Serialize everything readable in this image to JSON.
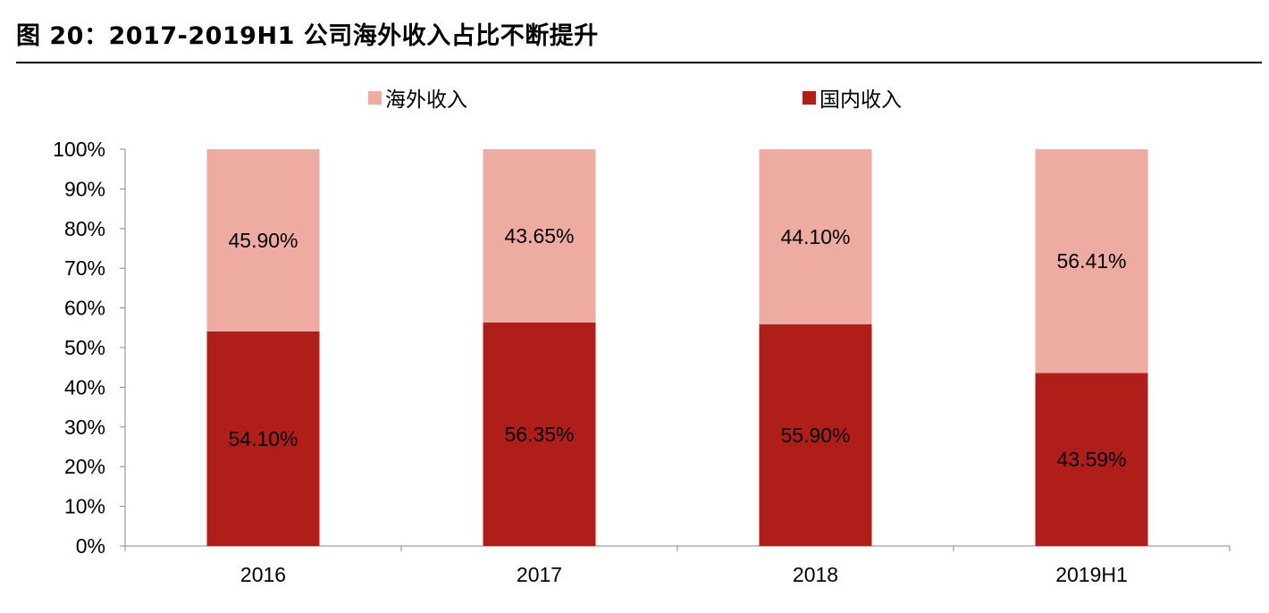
{
  "figure": {
    "title": "图 20：2017-2019H1 公司海外收入占比不断提升"
  },
  "chart_data": {
    "type": "bar",
    "stacked": true,
    "categories": [
      "2016",
      "2017",
      "2018",
      "2019H1"
    ],
    "series": [
      {
        "name": "国内收入",
        "values": [
          54.1,
          56.35,
          55.9,
          43.59
        ],
        "labels": [
          "54.10%",
          "56.35%",
          "55.90%",
          "43.59%"
        ],
        "color": "#B01E1A"
      },
      {
        "name": "海外收入",
        "values": [
          45.9,
          43.65,
          44.1,
          56.41
        ],
        "labels": [
          "45.90%",
          "43.65%",
          "44.10%",
          "56.41%"
        ],
        "color": "#EDABA2"
      }
    ],
    "ylim": [
      0,
      100
    ],
    "yticks": [
      "0%",
      "10%",
      "20%",
      "30%",
      "40%",
      "50%",
      "60%",
      "70%",
      "80%",
      "90%",
      "100%"
    ],
    "legend": "top",
    "grid": false
  }
}
